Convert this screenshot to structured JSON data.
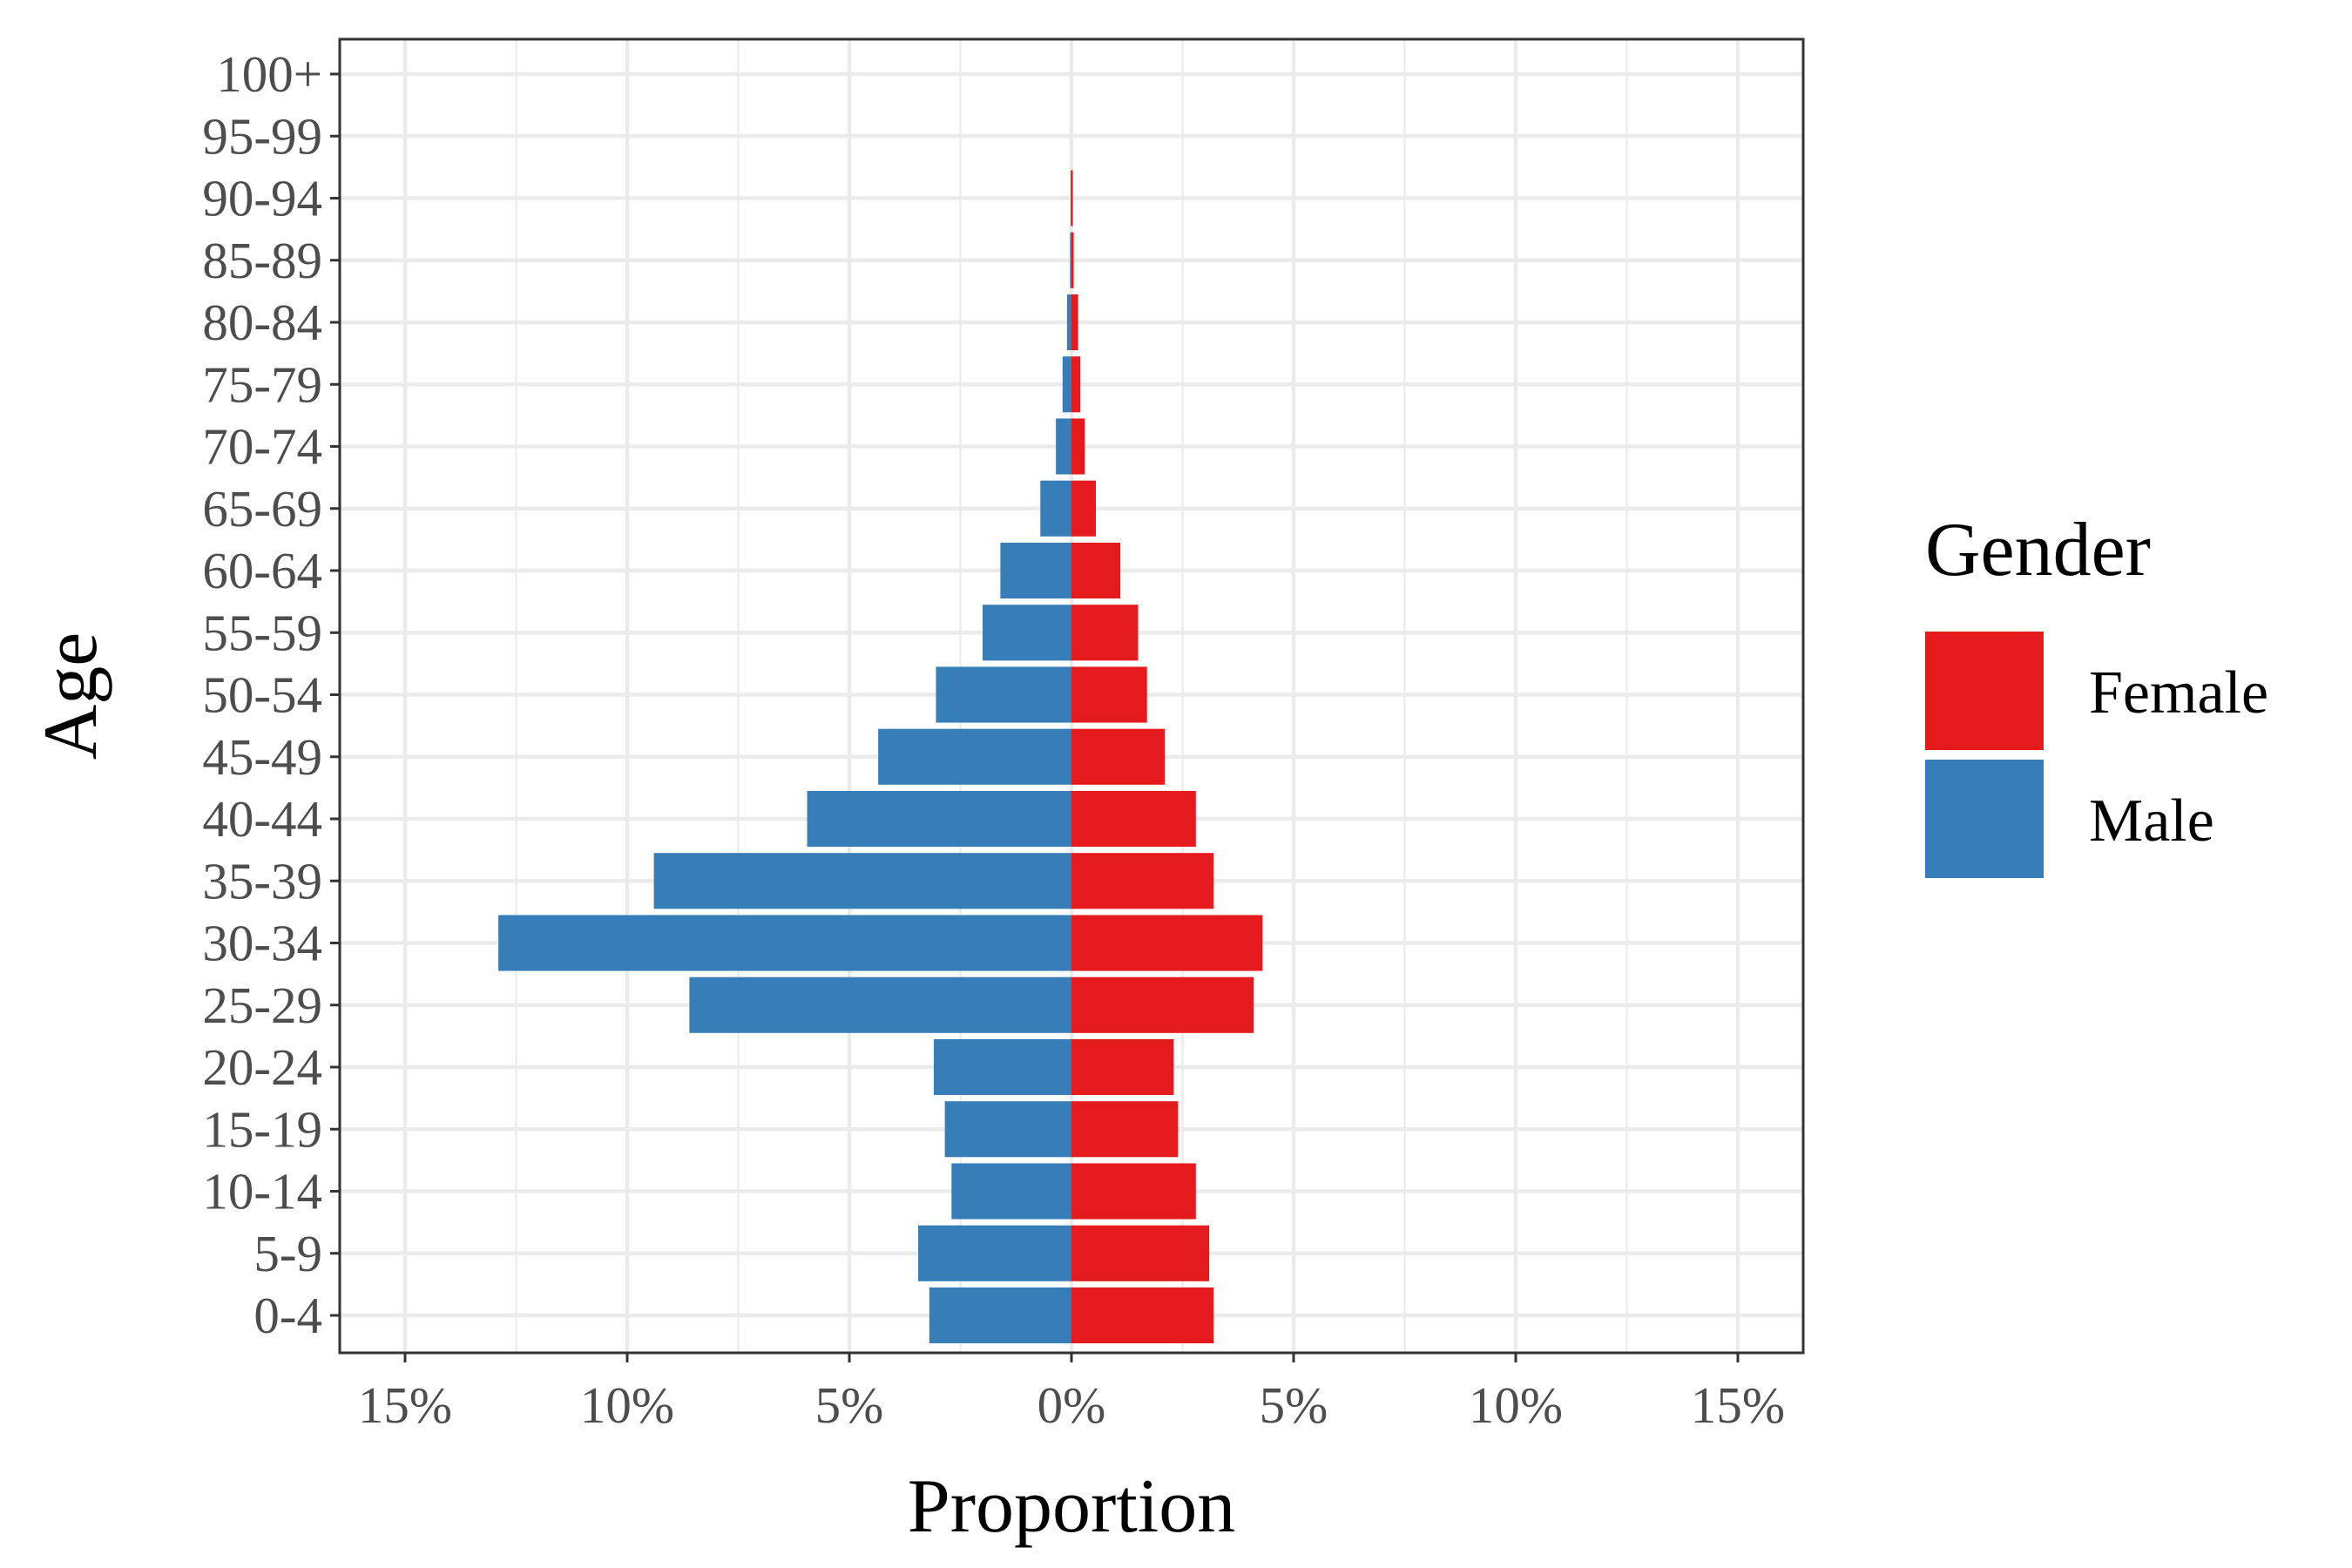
{
  "chart_data": {
    "type": "bar",
    "orientation": "horizontal",
    "layout": "population-pyramid",
    "xlabel": "Proportion",
    "ylabel": "Age",
    "xlim": [
      -0.15,
      0.15
    ],
    "x_ticks": [
      {
        "value": -0.15,
        "label": "15%"
      },
      {
        "value": -0.1,
        "label": "10%"
      },
      {
        "value": -0.05,
        "label": "5%"
      },
      {
        "value": 0.0,
        "label": "0%"
      },
      {
        "value": 0.05,
        "label": "5%"
      },
      {
        "value": 0.1,
        "label": "10%"
      },
      {
        "value": 0.15,
        "label": "15%"
      }
    ],
    "categories": [
      "0-4",
      "5-9",
      "10-14",
      "15-19",
      "20-24",
      "25-29",
      "30-34",
      "35-39",
      "40-44",
      "45-49",
      "50-54",
      "55-59",
      "60-64",
      "65-69",
      "70-74",
      "75-79",
      "80-84",
      "85-89",
      "90-94",
      "95-99",
      "100+"
    ],
    "series": [
      {
        "name": "Female",
        "color": "#e41a1c",
        "side": "right",
        "values": [
          0.032,
          0.031,
          0.028,
          0.024,
          0.023,
          0.041,
          0.043,
          0.032,
          0.028,
          0.021,
          0.017,
          0.015,
          0.011,
          0.0055,
          0.003,
          0.002,
          0.0015,
          0.0005,
          0.0003,
          0.0,
          0.0
        ]
      },
      {
        "name": "Male",
        "color": "#377eb8",
        "side": "left",
        "values": [
          0.032,
          0.0345,
          0.027,
          0.0285,
          0.031,
          0.086,
          0.129,
          0.094,
          0.0595,
          0.0435,
          0.0305,
          0.02,
          0.016,
          0.007,
          0.0035,
          0.002,
          0.001,
          0.0003,
          0.0002,
          0.0,
          0.0
        ]
      }
    ],
    "legend": {
      "title": "Gender",
      "position": "right",
      "entries": [
        {
          "label": "Female",
          "color": "#e41a1c"
        },
        {
          "label": "Male",
          "color": "#377eb8"
        }
      ]
    },
    "grid": true
  }
}
